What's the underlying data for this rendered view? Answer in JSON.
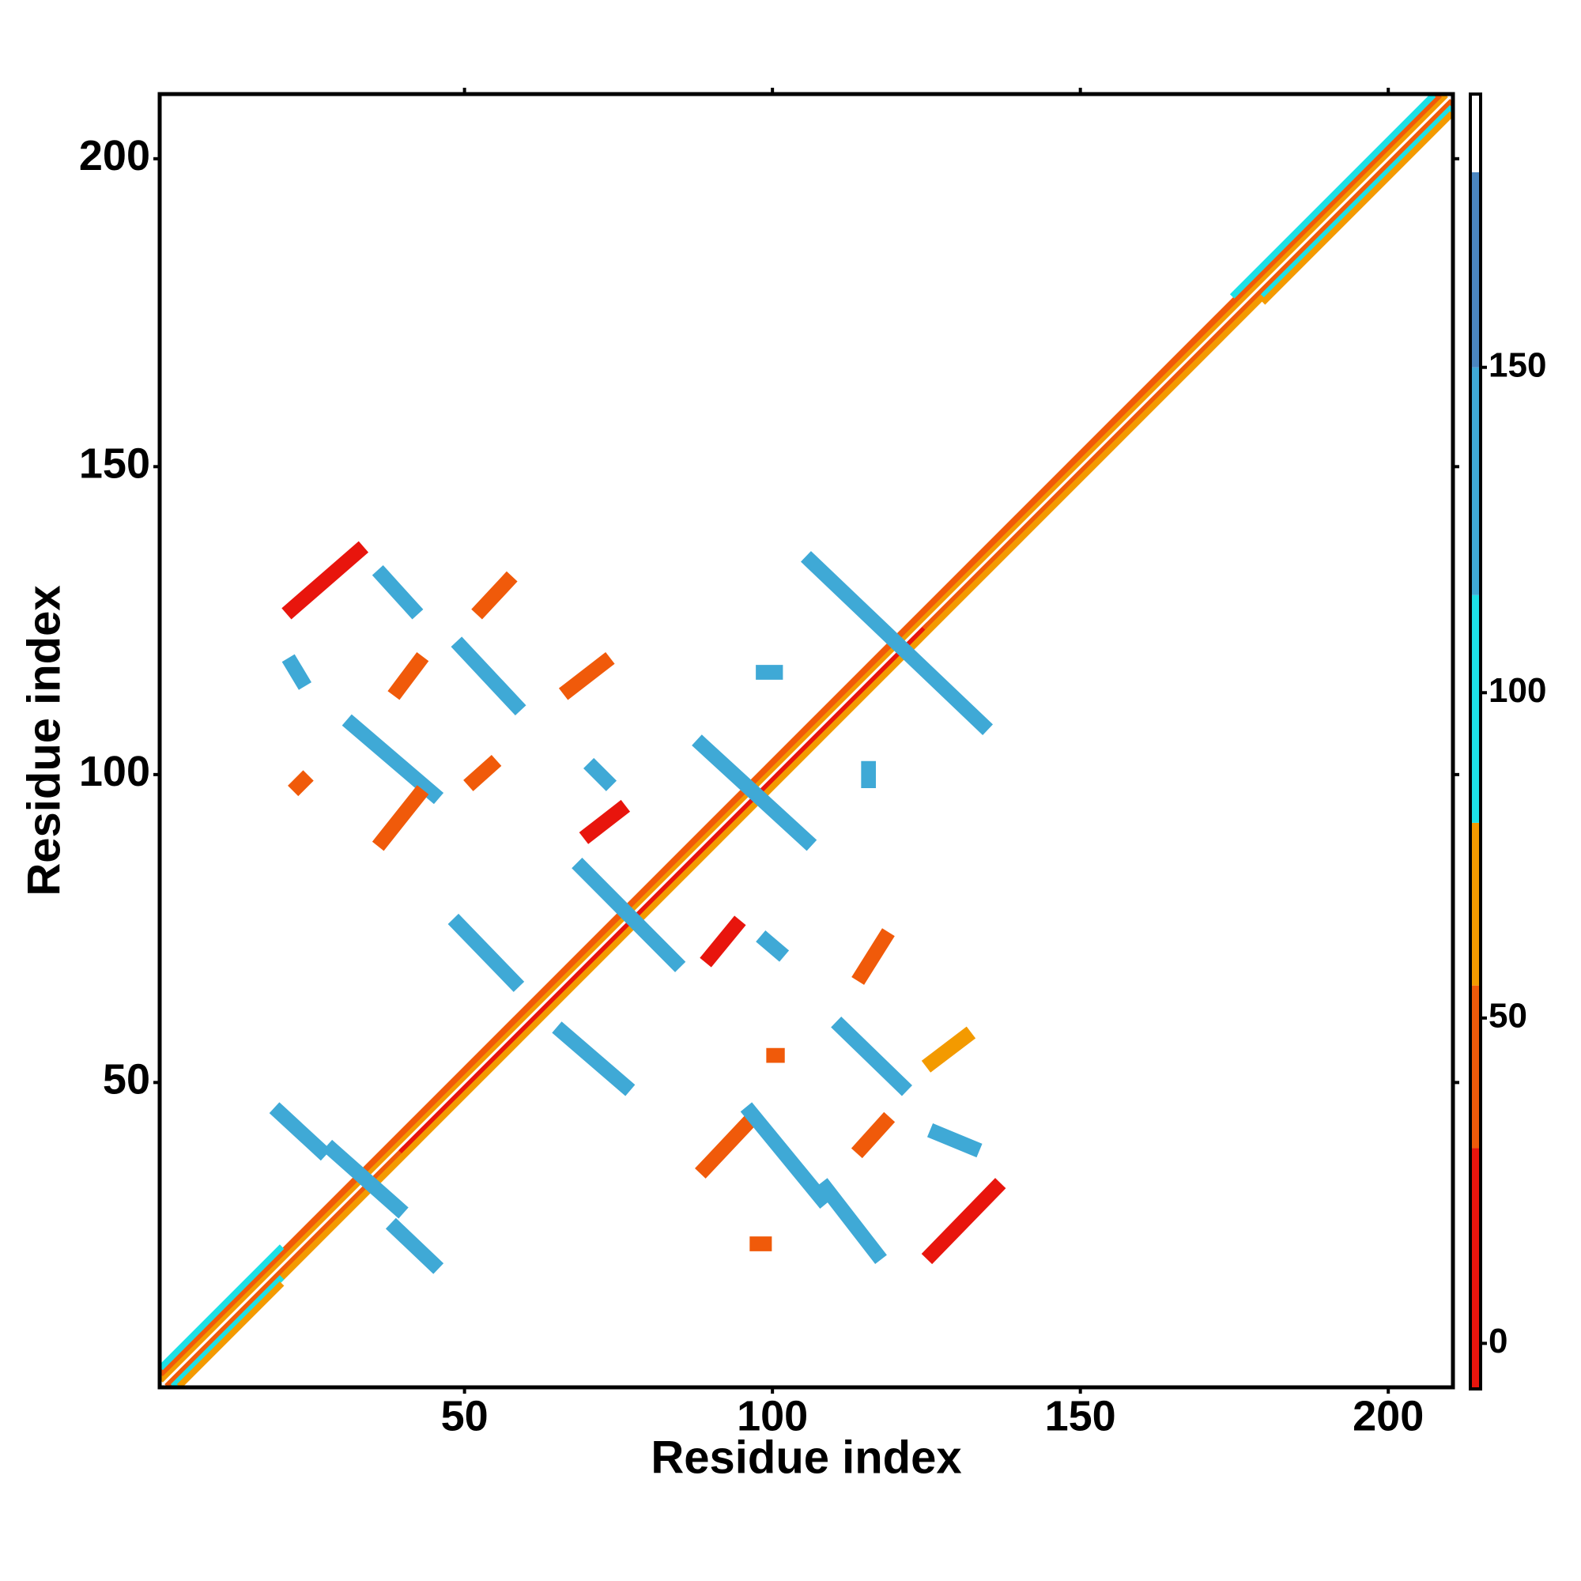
{
  "chart_data": {
    "type": "contact_map",
    "xlabel": "Residue index",
    "ylabel": "Residue index",
    "xlim": [
      0.5,
      210.5
    ],
    "ylim": [
      0.5,
      210.5
    ],
    "xticks": [
      50,
      100,
      150,
      200
    ],
    "yticks": [
      50,
      100,
      150,
      200
    ],
    "colorbar": {
      "lim": [
        -7,
        192
      ],
      "ticks": [
        0,
        50,
        100,
        150
      ],
      "breaks": [
        -7,
        30,
        55,
        80,
        115,
        150,
        180,
        192
      ],
      "colors": [
        "#e8150d",
        "#f05a0a",
        "#f39a00",
        "#1de0e6",
        "#3fa9d6",
        "#4a86c0",
        "#ffffff"
      ]
    },
    "bands": [
      {
        "x": [
          1,
          209
        ],
        "y": [
          2,
          210
        ],
        "value": 55
      },
      {
        "x": [
          1,
          208
        ],
        "y": [
          3,
          210
        ],
        "value": 45
      },
      {
        "x": [
          2,
          40
        ],
        "y": [
          1,
          39
        ],
        "value": 40
      },
      {
        "x": [
          40,
          125
        ],
        "y": [
          39,
          124
        ],
        "value": 10
      },
      {
        "x": [
          125,
          210
        ],
        "y": [
          124,
          209
        ],
        "value": 40
      },
      {
        "x": [
          3,
          210
        ],
        "y": [
          1,
          208
        ],
        "value": 65
      },
      {
        "x": [
          3,
          20
        ],
        "y": [
          1,
          18
        ],
        "value": 100
      },
      {
        "x": [
          180,
          210
        ],
        "y": [
          178,
          208
        ],
        "value": 100
      },
      {
        "x": [
          1,
          20
        ],
        "y": [
          4,
          23
        ],
        "value": 100
      },
      {
        "x": [
          175,
          207
        ],
        "y": [
          178,
          210
        ],
        "value": 100
      },
      {
        "x": [
          4,
          20
        ],
        "y": [
          1,
          17
        ],
        "value": 55
      },
      {
        "x": [
          180,
          210
        ],
        "y": [
          177,
          207
        ],
        "value": 55
      }
    ],
    "streaks": [
      {
        "x": [
          22,
          32.7
        ],
        "y": [
          126.9,
          136.2
        ],
        "value": 20
      },
      {
        "x": [
          36.7,
          41.6
        ],
        "y": [
          132.3,
          126.9
        ],
        "value": 140
      },
      {
        "x": [
          52.8,
          56.9
        ],
        "y": [
          126.9,
          131.3
        ],
        "value": 50
      },
      {
        "x": [
          49.5,
          58.3
        ],
        "y": [
          120.7,
          111.3
        ],
        "value": 145
      },
      {
        "x": [
          22,
          23.5
        ],
        "y": [
          117.9,
          115.4
        ],
        "value": 140
      },
      {
        "x": [
          39.2,
          42.5
        ],
        "y": [
          113.8,
          118.2
        ],
        "value": 45
      },
      {
        "x": [
          67,
          72.7
        ],
        "y": [
          113.8,
          118.2
        ],
        "value": 40
      },
      {
        "x": [
          31.8,
          44.9
        ],
        "y": [
          108.1,
          96.9
        ],
        "value": 145
      },
      {
        "x": [
          36.7,
          42.5
        ],
        "y": [
          89.3,
          96.6
        ],
        "value": 45
      },
      {
        "x": [
          23,
          23.8
        ],
        "y": [
          98.2,
          99
        ],
        "value": 45
      },
      {
        "x": [
          51.5,
          54.3
        ],
        "y": [
          99,
          101.5
        ],
        "value": 45
      },
      {
        "x": [
          70.3,
          75.2
        ],
        "y": [
          90.4,
          94.2
        ],
        "value": 10
      },
      {
        "x": [
          71,
          73
        ],
        "y": [
          101,
          99
        ],
        "value": 140
      },
      {
        "x": [
          69.1,
          84.2
        ],
        "y": [
          84.8,
          69.6
        ],
        "value": 145
      },
      {
        "x": [
          49,
          58
        ],
        "y": [
          75.7,
          66.4
        ],
        "value": 145
      },
      {
        "x": [
          88.6,
          105.5
        ],
        "y": [
          104.8,
          89.3
        ],
        "value": 145
      },
      {
        "x": [
          106.3,
          134.1
        ],
        "y": [
          134.6,
          108.1
        ],
        "value": 145
      },
      {
        "x": [
          98.5,
          100.5
        ],
        "y": [
          116.6,
          116.6
        ],
        "value": 120
      },
      {
        "x": [
          115.6,
          115.6
        ],
        "y": [
          101,
          99
        ],
        "value": 140
      },
      {
        "x": [
          89.9,
          94
        ],
        "y": [
          70.4,
          75.4
        ],
        "value": 10
      },
      {
        "x": [
          99,
          101
        ],
        "y": [
          73,
          71.3
        ],
        "value": 120
      },
      {
        "x": [
          114.5,
          118.2
        ],
        "y": [
          67.5,
          73.4
        ],
        "value": 30
      },
      {
        "x": [
          65.9,
          76
        ],
        "y": [
          58.2,
          49.5
        ],
        "value": 145
      },
      {
        "x": [
          111.2,
          121
        ],
        "y": [
          59,
          49.5
        ],
        "value": 145
      },
      {
        "x": [
          125.9,
          131.3
        ],
        "y": [
          53.3,
          57.4
        ],
        "value": 55
      },
      {
        "x": [
          100.2,
          100.8
        ],
        "y": [
          54.4,
          54.4
        ],
        "value": 45
      },
      {
        "x": [
          20,
          26.6
        ],
        "y": [
          45.1,
          39
        ],
        "value": 145
      },
      {
        "x": [
          28.6,
          39.2
        ],
        "y": [
          39,
          29.6
        ],
        "value": 140
      },
      {
        "x": [
          38.9,
          44.9
        ],
        "y": [
          26.3,
          20.6
        ],
        "value": 145
      },
      {
        "x": [
          89.1,
          95.6
        ],
        "y": [
          36.1,
          43
        ],
        "value": 45
      },
      {
        "x": [
          96.5,
          107.9
        ],
        "y": [
          45.1,
          31.2
        ],
        "value": 145
      },
      {
        "x": [
          108.7,
          116.9
        ],
        "y": [
          32.8,
          22.2
        ],
        "value": 135
      },
      {
        "x": [
          114.5,
          118.2
        ],
        "y": [
          39.4,
          43.5
        ],
        "value": 30
      },
      {
        "x": [
          126.7,
          132.5
        ],
        "y": [
          41.8,
          39.4
        ],
        "value": 140
      },
      {
        "x": [
          125.9,
          136.2
        ],
        "y": [
          22.2,
          32.8
        ],
        "value": 15
      },
      {
        "x": [
          97.5,
          98.7
        ],
        "y": [
          23.8,
          23.8
        ],
        "value": 50
      }
    ]
  }
}
